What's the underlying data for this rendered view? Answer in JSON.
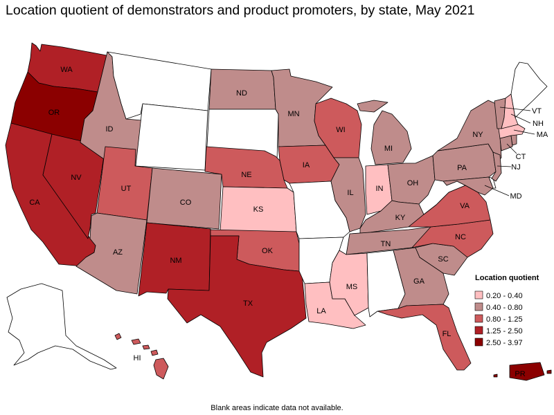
{
  "title": "Location quotient of demonstrators and product promoters, by state, May 2021",
  "footnote": "Blank areas indicate data not available.",
  "legend": {
    "title": "Location quotient",
    "bins": [
      {
        "label": "0.20 - 0.40",
        "color": "#ffbfc1"
      },
      {
        "label": "0.40 - 0.80",
        "color": "#bf8c8b"
      },
      {
        "label": "0.80 - 1.25",
        "color": "#cd5a5c"
      },
      {
        "label": "1.25 - 2.50",
        "color": "#b02026"
      },
      {
        "label": "2.50 - 3.97",
        "color": "#8b0000"
      }
    ],
    "no_data_color": "#ffffff"
  },
  "states": {
    "WA": {
      "label": "WA",
      "bin": 3
    },
    "OR": {
      "label": "OR",
      "bin": 4
    },
    "CA": {
      "label": "CA",
      "bin": 3
    },
    "NV": {
      "label": "NV",
      "bin": 3
    },
    "ID": {
      "label": "ID",
      "bin": 1
    },
    "MT": {
      "label": "",
      "bin": -1
    },
    "WY": {
      "label": "",
      "bin": -1
    },
    "UT": {
      "label": "UT",
      "bin": 2
    },
    "AZ": {
      "label": "AZ",
      "bin": 1
    },
    "CO": {
      "label": "CO",
      "bin": 1
    },
    "NM": {
      "label": "NM",
      "bin": 3
    },
    "ND": {
      "label": "ND",
      "bin": 1
    },
    "SD": {
      "label": "",
      "bin": -1
    },
    "NE": {
      "label": "NE",
      "bin": 2
    },
    "KS": {
      "label": "KS",
      "bin": 0
    },
    "OK": {
      "label": "OK",
      "bin": 2
    },
    "TX": {
      "label": "TX",
      "bin": 3
    },
    "MN": {
      "label": "MN",
      "bin": 1
    },
    "IA": {
      "label": "IA",
      "bin": 2
    },
    "MO": {
      "label": "",
      "bin": -1
    },
    "AR": {
      "label": "",
      "bin": -1
    },
    "LA": {
      "label": "LA",
      "bin": 0
    },
    "WI": {
      "label": "WI",
      "bin": 2
    },
    "IL": {
      "label": "IL",
      "bin": 1
    },
    "MI": {
      "label": "MI",
      "bin": 1
    },
    "IN": {
      "label": "IN",
      "bin": 0
    },
    "OH": {
      "label": "OH",
      "bin": 1
    },
    "KY": {
      "label": "KY",
      "bin": 1
    },
    "TN": {
      "label": "TN",
      "bin": 1
    },
    "MS": {
      "label": "MS",
      "bin": 0
    },
    "AL": {
      "label": "",
      "bin": -1
    },
    "GA": {
      "label": "GA",
      "bin": 1
    },
    "FL": {
      "label": "FL",
      "bin": 2
    },
    "SC": {
      "label": "SC",
      "bin": 1
    },
    "NC": {
      "label": "NC",
      "bin": 2
    },
    "VA": {
      "label": "VA",
      "bin": 2
    },
    "WV": {
      "label": "",
      "bin": -1
    },
    "PA": {
      "label": "PA",
      "bin": 1
    },
    "NY": {
      "label": "NY",
      "bin": 1
    },
    "VT": {
      "label": "VT",
      "bin": 1
    },
    "NH": {
      "label": "NH",
      "bin": 0
    },
    "ME": {
      "label": "",
      "bin": -1
    },
    "MA": {
      "label": "MA",
      "bin": 0
    },
    "CT": {
      "label": "CT",
      "bin": 1
    },
    "RI": {
      "label": "",
      "bin": 1
    },
    "NJ": {
      "label": "NJ",
      "bin": 1
    },
    "DE": {
      "label": "",
      "bin": -1
    },
    "MD": {
      "label": "MD",
      "bin": 1
    },
    "AK": {
      "label": "",
      "bin": -1
    },
    "HI": {
      "label": "HI",
      "bin": 2
    },
    "PR": {
      "label": "PR",
      "bin": 4
    }
  }
}
